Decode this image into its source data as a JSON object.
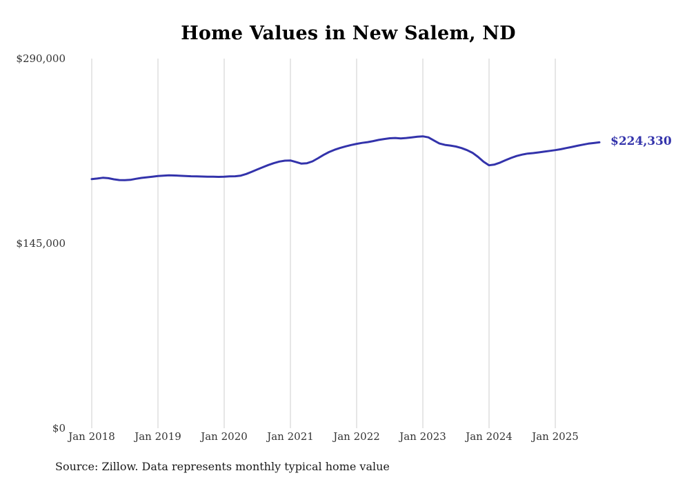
{
  "chart_data": {
    "type": "line",
    "title": "Home Values in New Salem, ND",
    "x_tick_labels": [
      "Jan 2018",
      "Jan 2019",
      "Jan 2020",
      "Jan 2021",
      "Jan 2022",
      "Jan 2023",
      "Jan 2024",
      "Jan 2025"
    ],
    "y_ticks": [
      {
        "label": "$290,000",
        "value": 290000
      },
      {
        "label": "$145,000",
        "value": 145000
      },
      {
        "label": "$0",
        "value": 0
      }
    ],
    "ylim": [
      0,
      290000
    ],
    "x_unit": "month",
    "x_range_start": "Jan 2018",
    "x_range_end": "Sep 2025",
    "grid": "vertical-only",
    "legend": "none",
    "end_label": "$224,330",
    "end_value": 224330,
    "source_note": "Source: Zillow. Data represents monthly typical home value",
    "colors": {
      "line": "#3333ab",
      "end_label": "#3333ab",
      "gridline": "#cccccc",
      "tick_text": "#333333",
      "title_text": "#000000",
      "source_text": "#1a1a1a",
      "background": "#ffffff"
    },
    "series": [
      {
        "name": "Typical home value",
        "values": [
          195400,
          195900,
          196500,
          196200,
          195300,
          194700,
          194600,
          194900,
          195700,
          196400,
          196900,
          197400,
          197900,
          198200,
          198400,
          198300,
          198100,
          197900,
          197700,
          197600,
          197500,
          197400,
          197300,
          197200,
          197300,
          197600,
          197700,
          198200,
          199500,
          201200,
          203000,
          204800,
          206500,
          208000,
          209200,
          209900,
          210100,
          208900,
          207600,
          207900,
          209400,
          211800,
          214400,
          216700,
          218500,
          219900,
          221100,
          222200,
          223100,
          223900,
          224500,
          225300,
          226200,
          226900,
          227500,
          227700,
          227400,
          227700,
          228200,
          228700,
          229000,
          228200,
          225800,
          223400,
          222300,
          221800,
          221000,
          219800,
          218200,
          216100,
          212900,
          209100,
          206300,
          206900,
          208400,
          210300,
          212100,
          213600,
          214700,
          215500,
          215900,
          216400,
          217000,
          217600,
          218200,
          218900,
          219800,
          220700,
          221600,
          222500,
          223300,
          223800,
          224330
        ]
      }
    ]
  }
}
